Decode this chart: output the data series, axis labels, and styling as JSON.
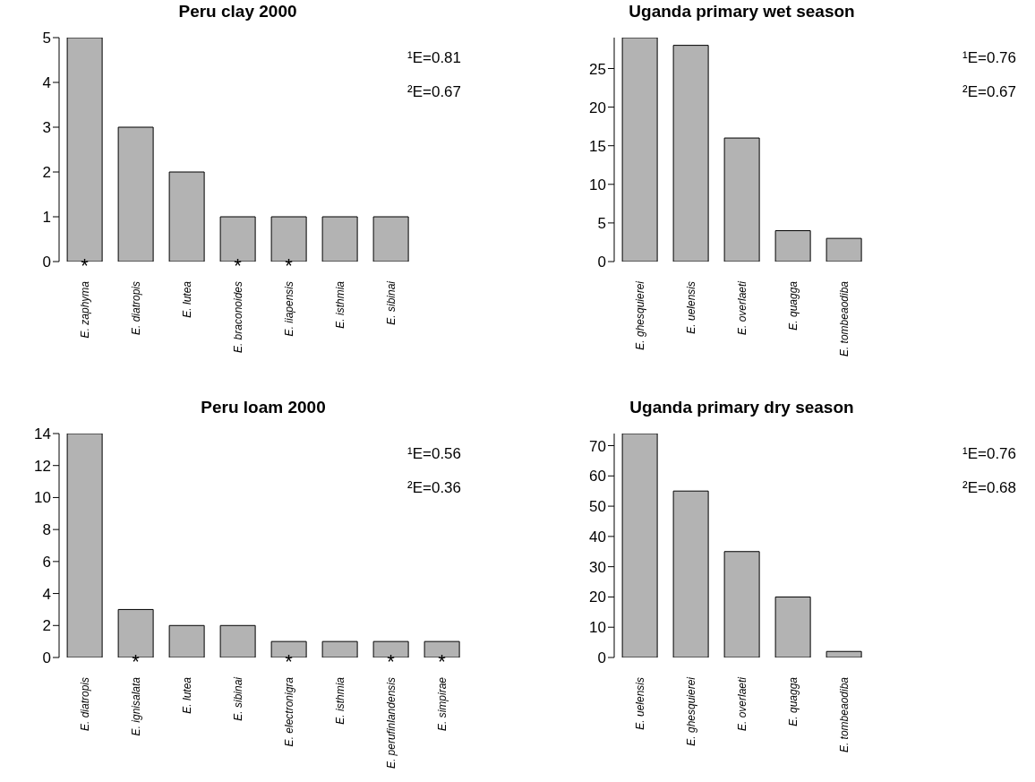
{
  "chart_data": [
    {
      "type": "bar",
      "title": "Peru clay 2000",
      "categories": [
        "E. zaphyma",
        "E. diatropis",
        "E. lutea",
        "E. braconoides",
        "E. iiapensis",
        "E. isthmia",
        "E. sibinai"
      ],
      "values": [
        5,
        3,
        2,
        1,
        1,
        1,
        1
      ],
      "color": "#b3b3b3",
      "ylim": [
        0,
        5
      ],
      "yticks": [
        0,
        1,
        2,
        3,
        4,
        5
      ],
      "annotations": [
        "¹E=0.81",
        "²E=0.67",
        {
          "text": "*",
          "x": "E. zaphyma",
          "y": 0
        },
        {
          "text": "*",
          "x": "E. braconoides",
          "y": 0
        },
        {
          "text": "*",
          "x": "E. iiapensis",
          "y": 0
        }
      ]
    },
    {
      "type": "bar",
      "title": "Uganda primary wet season",
      "categories": [
        "E. ghesquierei",
        "E. uelensis",
        "E. overlaeti",
        "E. quagga",
        "E. tombeaodiba"
      ],
      "values": [
        29,
        28,
        16,
        4,
        3
      ],
      "color": "#b3b3b3",
      "ylim": [
        0,
        29
      ],
      "yticks": [
        0,
        5,
        10,
        15,
        20,
        25
      ],
      "annotations": [
        "¹E=0.76",
        "²E=0.67"
      ]
    },
    {
      "type": "bar",
      "title": "Peru loam 2000",
      "categories": [
        "E. diatropis",
        "E. ignisalata",
        "E. lutea",
        "E. sibinai",
        "E. electronigra",
        "E. isthmia",
        "E. perufinlandensis",
        "E. simpirae"
      ],
      "values": [
        14,
        3,
        2,
        2,
        1,
        1,
        1,
        1
      ],
      "color": "#b3b3b3",
      "ylim": [
        0,
        14
      ],
      "yticks": [
        0,
        2,
        4,
        6,
        8,
        10,
        12,
        14
      ],
      "annotations": [
        "¹E=0.56",
        "²E=0.36",
        {
          "text": "*",
          "x": "E. ignisalata",
          "y": 0
        },
        {
          "text": "*",
          "x": "E. electronigra",
          "y": 0
        },
        {
          "text": "*",
          "x": "E. perufinlandensis",
          "y": 0
        },
        {
          "text": "*",
          "x": "E. simpirae",
          "y": 0
        }
      ]
    },
    {
      "type": "bar",
      "title": "Uganda primary dry season",
      "categories": [
        "E. uelensis",
        "E. ghesquierei",
        "E. overlaeti",
        "E. quagga",
        "E. tombeaodiba"
      ],
      "values": [
        74,
        55,
        35,
        20,
        2
      ],
      "color": "#b3b3b3",
      "ylim": [
        0,
        74
      ],
      "yticks": [
        0,
        10,
        20,
        30,
        40,
        50,
        60,
        70
      ],
      "annotations": [
        "¹E=0.76",
        "²E=0.68"
      ]
    }
  ]
}
